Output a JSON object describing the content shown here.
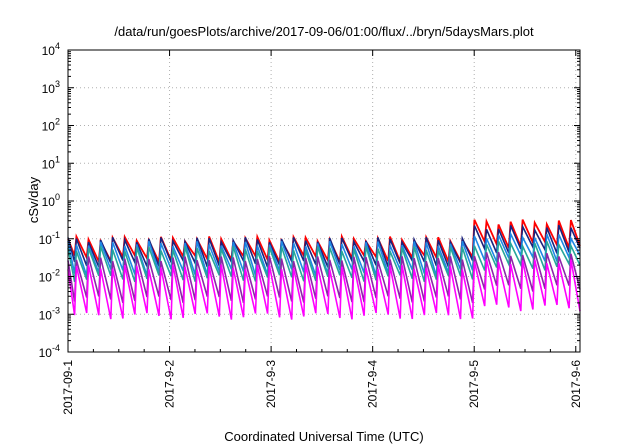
{
  "chart_data": {
    "type": "line",
    "title": "/data/run/goesPlots/archive/2017-09-06/01:00/flux/../bryn/5daysMars.plot",
    "xlabel": "Coordinated Universal Time (UTC)",
    "ylabel": "cSv/day",
    "yscale": "log",
    "ylim": [
      0.0001,
      10000
    ],
    "xlim": [
      "2017-09-01",
      "2017-09-06 01:00"
    ],
    "grid": true,
    "legend": "none",
    "x_ticks": [
      "2017-09-1",
      "2017-9-2",
      "2017-9-3",
      "2017-9-4",
      "2017-9-5",
      "2017-9-6"
    ],
    "y_ticks": [
      {
        "value": 0.0001,
        "base": "10",
        "exp": "-4"
      },
      {
        "value": 0.001,
        "base": "10",
        "exp": "-3"
      },
      {
        "value": 0.01,
        "base": "10",
        "exp": "-2"
      },
      {
        "value": 0.1,
        "base": "10",
        "exp": "-1"
      },
      {
        "value": 1,
        "base": "10",
        "exp": "0"
      },
      {
        "value": 10,
        "base": "10",
        "exp": "1"
      },
      {
        "value": 100,
        "base": "10",
        "exp": "2"
      },
      {
        "value": 1000,
        "base": "10",
        "exp": "3"
      },
      {
        "value": 10000,
        "base": "10",
        "exp": "4"
      }
    ],
    "cycle_hours": 2.85,
    "series": [
      {
        "color": "#ff0000",
        "peak_before": 0.1,
        "trough_before": 0.03,
        "peak_after": 0.28,
        "trough_after": 0.07
      },
      {
        "color": "#1a237e",
        "peak_before": 0.095,
        "trough_before": 0.022,
        "peak_after": 0.2,
        "trough_after": 0.05
      },
      {
        "color": "#1e88e5",
        "peak_before": 0.075,
        "trough_before": 0.013,
        "peak_after": 0.12,
        "trough_after": 0.03
      },
      {
        "color": "#26a69a",
        "peak_before": 0.055,
        "trough_before": 0.009,
        "peak_after": 0.075,
        "trough_after": 0.018
      },
      {
        "color": "#8e24aa",
        "peak_before": 0.03,
        "trough_before": 0.0025,
        "peak_after": 0.04,
        "trough_after": 0.005
      },
      {
        "color": "#ff00ff",
        "peak_before": 0.018,
        "trough_before": 0.0009,
        "peak_after": 0.025,
        "trough_after": 0.0015
      }
    ]
  }
}
